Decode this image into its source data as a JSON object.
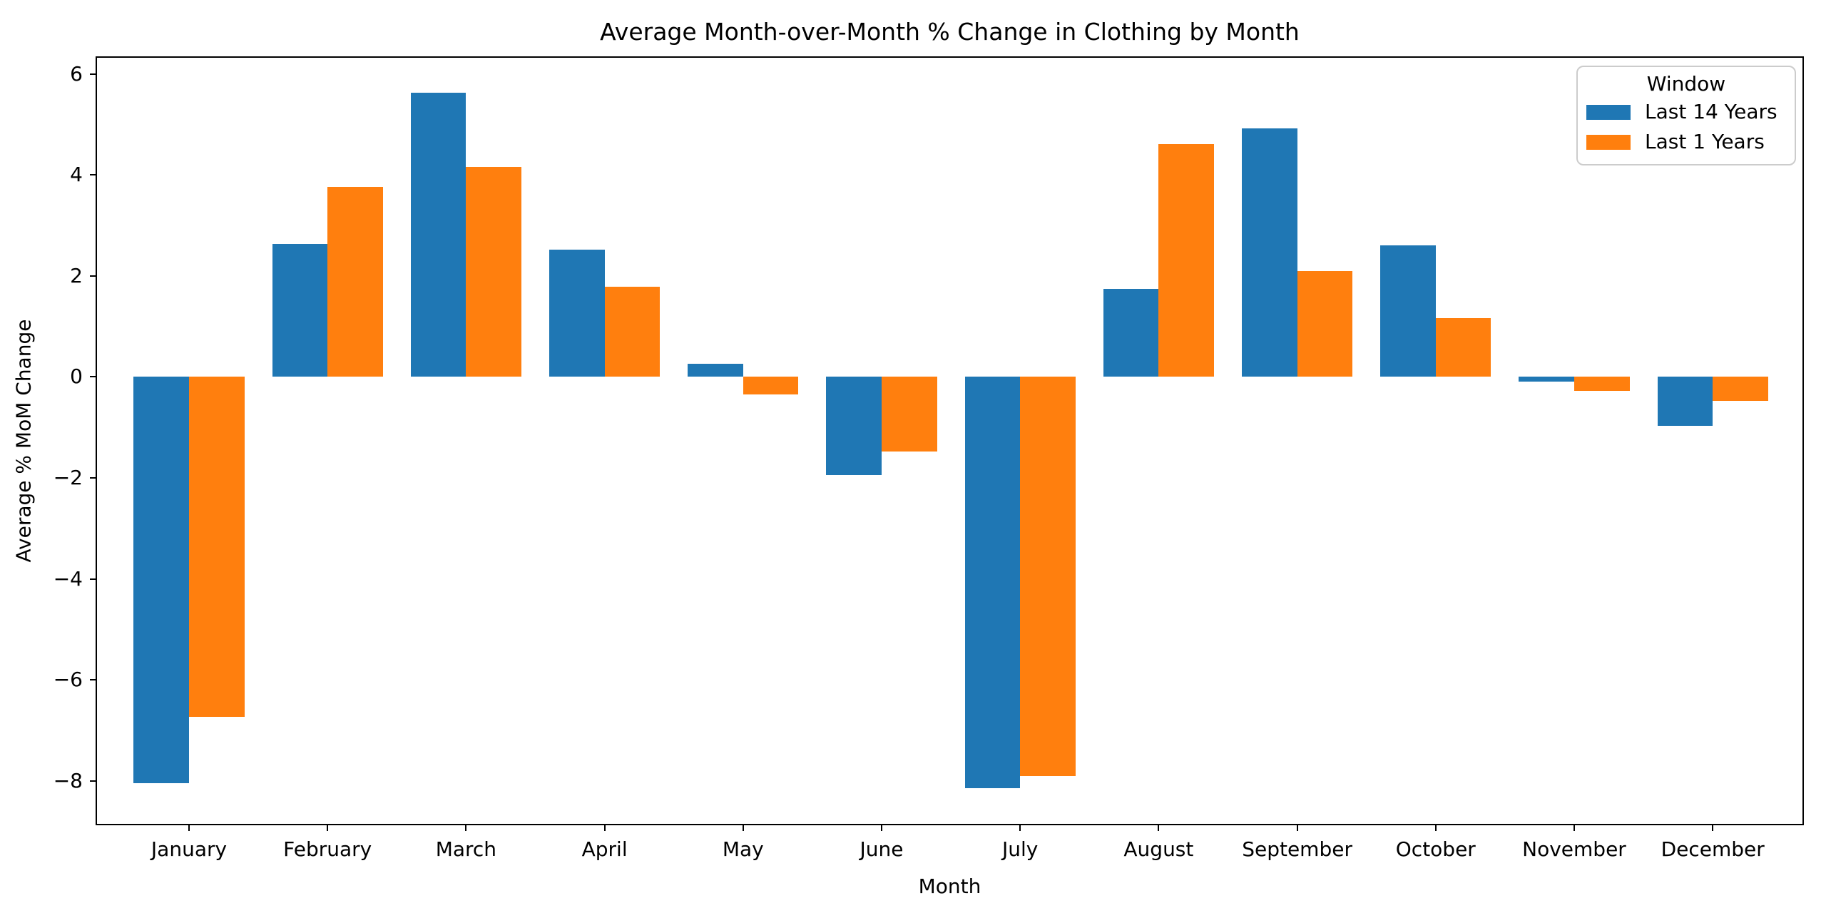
{
  "chart_data": {
    "type": "bar",
    "title": "Average Month-over-Month % Change in Clothing by Month",
    "xlabel": "Month",
    "ylabel": "Average % MoM Change",
    "categories": [
      "January",
      "February",
      "March",
      "April",
      "May",
      "June",
      "July",
      "August",
      "September",
      "October",
      "November",
      "December"
    ],
    "series": [
      {
        "name": "Last 14 Years",
        "color": "#1f77b4",
        "values": [
          -8.05,
          2.64,
          5.63,
          2.52,
          0.26,
          -1.95,
          -8.15,
          1.75,
          4.92,
          2.6,
          -0.09,
          -0.97
        ]
      },
      {
        "name": "Last 1 Years",
        "color": "#ff7f0e",
        "values": [
          -6.73,
          3.77,
          4.16,
          1.79,
          -0.35,
          -1.48,
          -7.9,
          4.61,
          2.1,
          1.16,
          -0.28,
          -0.48
        ]
      }
    ],
    "ylim": [
      -8.85,
      6.32
    ],
    "yticks": [
      -8,
      -6,
      -4,
      -2,
      0,
      2,
      4,
      6
    ],
    "grid": false,
    "legend": {
      "title": "Window",
      "position": "upper right"
    }
  }
}
